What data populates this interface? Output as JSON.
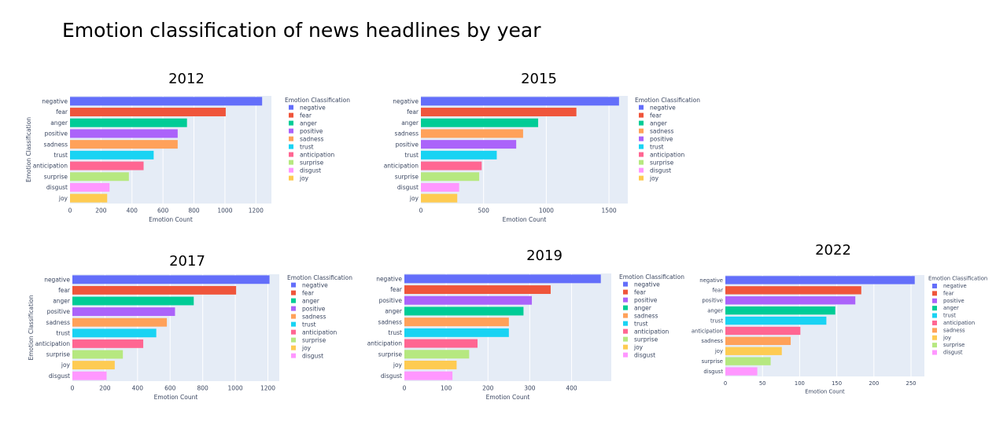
{
  "title": "Emotion classification of news headlines by year",
  "colors": {
    "negative": "#636efa",
    "fear": "#ef553b",
    "anger": "#00cc96",
    "positive": "#ab63fa",
    "sadness": "#ffa15a",
    "trust": "#19d3f3",
    "anticipation": "#ff6692",
    "surprise": "#b6e880",
    "disgust": "#ff97ff",
    "joy": "#fecb52"
  },
  "chart_data": [
    {
      "type": "bar",
      "orientation": "horizontal",
      "title": "2012",
      "xlabel": "Emotion Count",
      "ylabel": "Emotion Classification",
      "legend_title": "Emotion Classification",
      "categories": [
        "negative",
        "fear",
        "anger",
        "positive",
        "sadness",
        "trust",
        "anticipation",
        "surprise",
        "disgust",
        "joy"
      ],
      "values": [
        1240,
        1005,
        755,
        695,
        695,
        540,
        475,
        380,
        255,
        240
      ],
      "xlim": [
        0,
        1300
      ],
      "xticks": [
        0,
        200,
        400,
        600,
        800,
        1000,
        1200
      ]
    },
    {
      "type": "bar",
      "orientation": "horizontal",
      "title": "2015",
      "xlabel": "Emotion Count",
      "ylabel": "",
      "legend_title": "Emotion Classification",
      "categories": [
        "negative",
        "fear",
        "anger",
        "sadness",
        "positive",
        "trust",
        "anticipation",
        "surprise",
        "disgust",
        "joy"
      ],
      "values": [
        1580,
        1240,
        935,
        815,
        760,
        605,
        485,
        465,
        305,
        290
      ],
      "xlim": [
        0,
        1650
      ],
      "xticks": [
        0,
        500,
        1000,
        1500
      ]
    },
    {
      "type": "bar",
      "orientation": "horizontal",
      "title": "2017",
      "xlabel": "Emotion Count",
      "ylabel": "Emotion Classification",
      "legend_title": "Emotion Classification",
      "categories": [
        "negative",
        "fear",
        "anger",
        "positive",
        "sadness",
        "trust",
        "anticipation",
        "surprise",
        "joy",
        "disgust"
      ],
      "values": [
        1210,
        1005,
        745,
        630,
        580,
        515,
        435,
        310,
        260,
        210
      ],
      "xlim": [
        0,
        1270
      ],
      "xticks": [
        0,
        200,
        400,
        600,
        800,
        1000,
        1200
      ]
    },
    {
      "type": "bar",
      "orientation": "horizontal",
      "title": "2019",
      "xlabel": "Emotion Count",
      "ylabel": "",
      "legend_title": "Emotion Classification",
      "categories": [
        "negative",
        "fear",
        "positive",
        "anger",
        "sadness",
        "trust",
        "anticipation",
        "surprise",
        "joy",
        "disgust"
      ],
      "values": [
        470,
        350,
        305,
        285,
        250,
        250,
        175,
        155,
        125,
        115
      ],
      "xlim": [
        0,
        495
      ],
      "xticks": [
        0,
        100,
        200,
        300,
        400
      ]
    },
    {
      "type": "bar",
      "orientation": "horizontal",
      "title": "2022",
      "xlabel": "Emotion Count",
      "ylabel": "",
      "legend_title": "Emotion Classification",
      "categories": [
        "negative",
        "fear",
        "positive",
        "anger",
        "trust",
        "anticipation",
        "sadness",
        "joy",
        "surprise",
        "disgust"
      ],
      "values": [
        255,
        183,
        175,
        148,
        136,
        101,
        88,
        76,
        61,
        43
      ],
      "xlim": [
        0,
        268
      ],
      "xticks": [
        0,
        50,
        100,
        150,
        200,
        250
      ]
    }
  ]
}
